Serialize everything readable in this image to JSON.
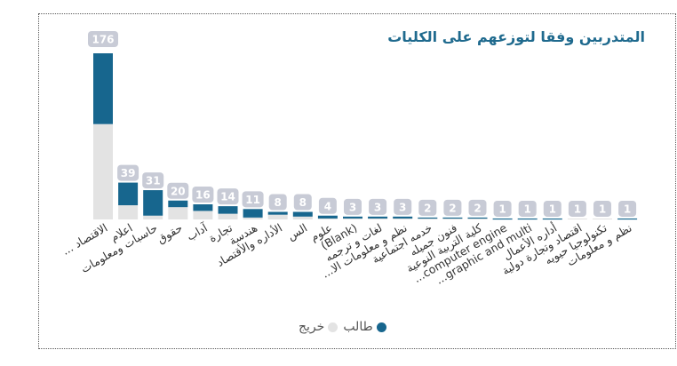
{
  "chart_data": {
    "type": "bar",
    "stacked": true,
    "title": "المتدربين وفقا لتوزعهم على الكليات",
    "categories": [
      "... الاقتصاد",
      "اعلام",
      "حاسبات ومعلومات",
      "حقوق",
      "آداب",
      "تجارة",
      "هندسة",
      "الأداره والأقتصاد",
      "الس",
      "علوم",
      "(Blank)",
      "لغات و ترجمه",
      "...نظم و معلومات الا",
      "خدمه اجتماعية",
      "فنون جميله",
      "كلية التربية النوعية",
      "...computer engine",
      "...graphic and multi",
      "أداره الأعمال",
      "اقتصاد وتجارة دولية",
      "تكنولوجيا حيويه",
      "نظم و معلومات"
    ],
    "totals": [
      176,
      39,
      31,
      20,
      16,
      14,
      11,
      8,
      8,
      4,
      3,
      3,
      3,
      2,
      2,
      2,
      1,
      1,
      1,
      1,
      1,
      1
    ],
    "series": [
      {
        "name": "طالب",
        "color": "#17668e",
        "values": [
          75,
          24,
          27,
          7,
          7,
          8,
          9,
          3,
          5,
          3,
          2,
          2,
          2,
          1,
          1,
          1,
          1,
          1,
          1,
          0,
          0,
          1
        ]
      },
      {
        "name": "خريج",
        "color": "#e3e3e3",
        "values": [
          101,
          15,
          4,
          13,
          9,
          6,
          2,
          5,
          3,
          1,
          1,
          1,
          1,
          1,
          1,
          1,
          0,
          0,
          0,
          1,
          1,
          0
        ]
      }
    ],
    "legend_position": "bottom-center",
    "grid": false
  },
  "colors": {
    "label_pill": "#c8cbd6",
    "title": "#1f6a8e"
  }
}
